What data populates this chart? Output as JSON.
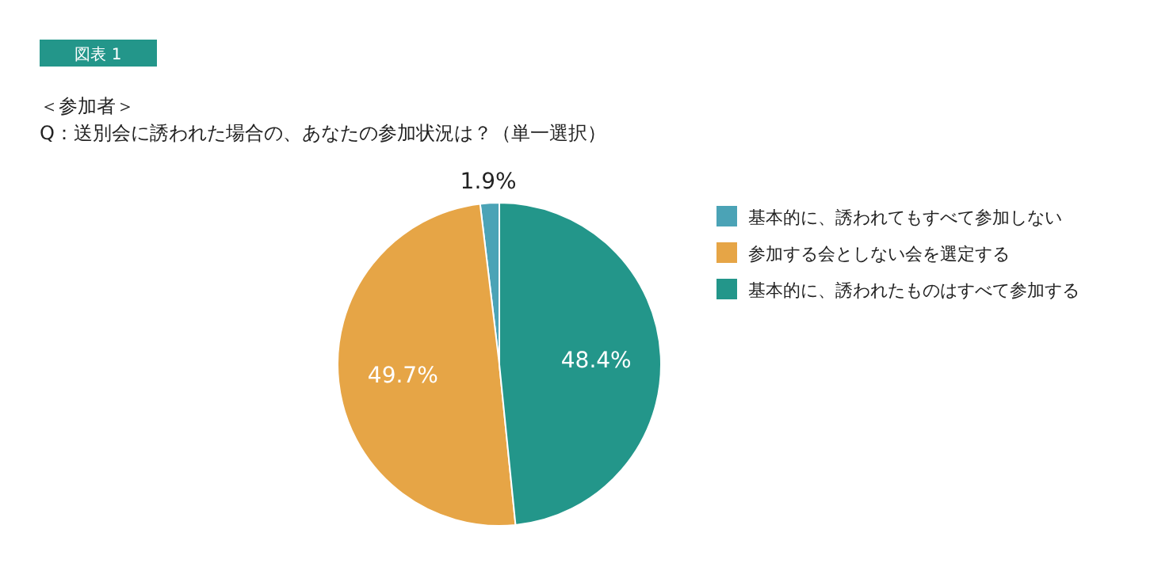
{
  "chart_data": {
    "type": "pie",
    "title": "図表 1",
    "annotations": [
      "＜参加者＞",
      "Q：送別会に誘われた場合の、あなたの参加状況は？（単一選択）"
    ],
    "categories": [
      "基本的に、誘われてもすべて参加しない",
      "参加する会としない会を選定する",
      "基本的に、誘われたものはすべて参加する"
    ],
    "values": [
      1.9,
      49.7,
      48.4
    ],
    "colors": [
      "#4ba3b6",
      "#e6a546",
      "#23968a"
    ],
    "value_labels": [
      "1.9%",
      "49.7%",
      "48.4%"
    ],
    "legend": "right"
  }
}
